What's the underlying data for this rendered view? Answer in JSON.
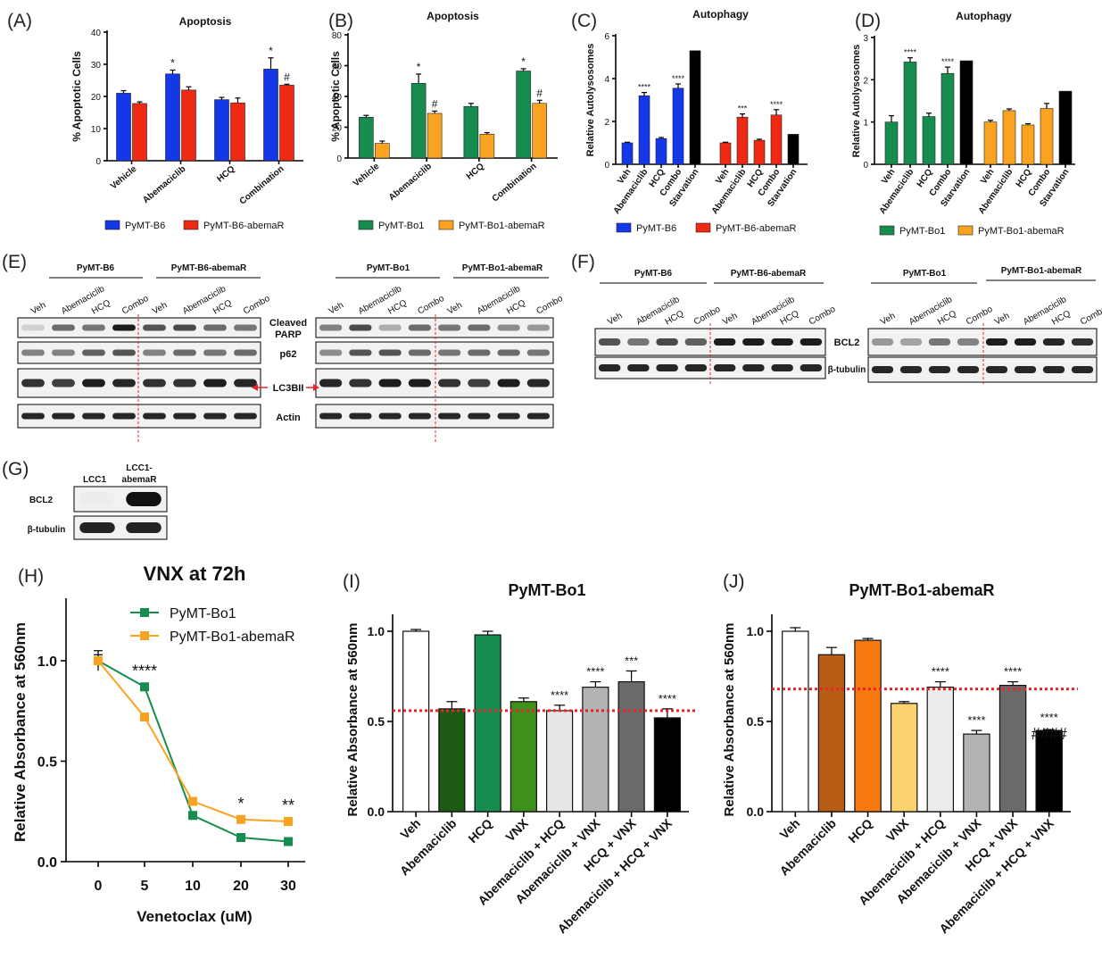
{
  "figure": {
    "panel_labels": [
      "(A)",
      "(B)",
      "(C)",
      "(D)",
      "(E)",
      "(F)",
      "(G)",
      "(H)",
      "(I)",
      "(J)"
    ],
    "colors": {
      "blue": "#1437e8",
      "red": "#ee2a15",
      "green": "#178c4f",
      "orange": "#f9a320",
      "black": "#000000",
      "threshold": "#e5262b"
    }
  },
  "chart_data": [
    {
      "id": "A",
      "type": "bar",
      "title": "Apoptosis",
      "ylabel": "% Apoptotic Cells",
      "xlabel": "",
      "ylim": [
        0,
        40
      ],
      "yticks": [
        "0",
        "10",
        "20",
        "30",
        "40"
      ],
      "categories": [
        "Vehicle",
        "Abemaciclib",
        "HCQ",
        "Combination"
      ],
      "series": [
        {
          "name": "PyMT-B6",
          "color": "#1437e8",
          "values": [
            21,
            27,
            19,
            28.5
          ],
          "errors": [
            0.8,
            1.2,
            0.7,
            3.5
          ]
        },
        {
          "name": "PyMT-B6-abemaR",
          "color": "#ee2a15",
          "values": [
            17.8,
            22,
            18,
            23.5
          ],
          "errors": [
            0.5,
            1.0,
            1.5,
            0.3
          ]
        }
      ],
      "annotations": [
        {
          "series": 0,
          "index": 1,
          "text": "*"
        },
        {
          "series": 0,
          "index": 3,
          "text": "*"
        },
        {
          "series": 1,
          "index": 3,
          "text": "#"
        }
      ]
    },
    {
      "id": "B",
      "type": "bar",
      "title": "Apoptosis",
      "ylabel": "% Apoptotic Cells",
      "xlabel": "",
      "ylim": [
        0,
        80
      ],
      "yticks": [
        "0",
        "20",
        "40",
        "60",
        "80"
      ],
      "categories": [
        "Vehicle",
        "Abemaciclib",
        "HCQ",
        "Combination"
      ],
      "series": [
        {
          "name": "PyMT-Bo1",
          "color": "#178c4f",
          "values": [
            26.5,
            48.5,
            33.5,
            56.5
          ],
          "errors": [
            1.2,
            6.0,
            2.0,
            1.5
          ]
        },
        {
          "name": "PyMT-Bo1-abemaR",
          "color": "#f9a320",
          "values": [
            9.5,
            29,
            15.5,
            35.5
          ],
          "errors": [
            1.5,
            1.5,
            1.0,
            2.0
          ]
        }
      ],
      "annotations": [
        {
          "series": 0,
          "index": 1,
          "text": "*"
        },
        {
          "series": 0,
          "index": 3,
          "text": "*"
        },
        {
          "series": 1,
          "index": 1,
          "text": "#"
        },
        {
          "series": 1,
          "index": 3,
          "text": "#"
        }
      ]
    },
    {
      "id": "C",
      "type": "bar",
      "title": "Autophagy",
      "ylabel": "Relative Autolysosomes",
      "xlabel": "",
      "ylim": [
        0,
        6
      ],
      "yticks": [
        "0",
        "2",
        "4",
        "6"
      ],
      "groups": [
        {
          "name": "PyMT-B6",
          "color": "#1437e8",
          "categories": [
            "Veh",
            "Abemaciclib",
            "HCQ",
            "Combo",
            "Starvation"
          ],
          "values": [
            1.0,
            3.2,
            1.2,
            3.55,
            5.3
          ],
          "errors": [
            0.03,
            0.15,
            0.05,
            0.2,
            0
          ],
          "bar_colors": [
            "#1437e8",
            "#1437e8",
            "#1437e8",
            "#1437e8",
            "#000000"
          ],
          "annotations": [
            "",
            "****",
            "",
            "****",
            ""
          ]
        },
        {
          "name": "PyMT-B6-abemaR",
          "color": "#ee2a15",
          "categories": [
            "Veh",
            "Abemaciclib",
            "HCQ",
            "Combo",
            "Starvation"
          ],
          "values": [
            1.0,
            2.2,
            1.12,
            2.3,
            1.4
          ],
          "errors": [
            0.03,
            0.15,
            0.05,
            0.25,
            0
          ],
          "bar_colors": [
            "#ee2a15",
            "#ee2a15",
            "#ee2a15",
            "#ee2a15",
            "#000000"
          ],
          "annotations": [
            "",
            "***",
            "",
            "****",
            ""
          ]
        }
      ],
      "legend": [
        "PyMT-B6",
        "PyMT-B6-abemaR"
      ]
    },
    {
      "id": "D",
      "type": "bar",
      "title": "Autophagy",
      "ylabel": "Relative Autolysosomes",
      "xlabel": "",
      "ylim": [
        0,
        3
      ],
      "yticks": [
        "0",
        "1",
        "2",
        "3"
      ],
      "groups": [
        {
          "name": "PyMT-Bo1",
          "color": "#178c4f",
          "categories": [
            "Veh",
            "Abemaciclib",
            "HCQ",
            "Combo",
            "Starvation"
          ],
          "values": [
            1.0,
            2.42,
            1.13,
            2.15,
            2.45
          ],
          "errors": [
            0.15,
            0.1,
            0.08,
            0.15,
            0
          ],
          "bar_colors": [
            "#178c4f",
            "#178c4f",
            "#178c4f",
            "#178c4f",
            "#000000"
          ],
          "annotations": [
            "",
            "****",
            "",
            "****",
            ""
          ]
        },
        {
          "name": "PyMT-Bo1-abemaR",
          "color": "#f9a320",
          "categories": [
            "Veh",
            "Abemaciclib",
            "HCQ",
            "Combo",
            "Starvation"
          ],
          "values": [
            1.0,
            1.27,
            0.93,
            1.32,
            1.73
          ],
          "errors": [
            0.04,
            0.04,
            0.03,
            0.12,
            0
          ],
          "bar_colors": [
            "#f9a320",
            "#f9a320",
            "#f9a320",
            "#f9a320",
            "#000000"
          ],
          "annotations": [
            "",
            "",
            "",
            "",
            ""
          ]
        }
      ],
      "legend": [
        "PyMT-Bo1",
        "PyMT-Bo1-abemaR"
      ]
    },
    {
      "id": "H",
      "type": "line",
      "title": "VNX at 72h",
      "xlabel": "Venetoclax (uM)",
      "ylabel": "Relative Absorbance at 560nm",
      "categories": [
        "0",
        "5",
        "10",
        "20",
        "30"
      ],
      "ylim": [
        0,
        1.2
      ],
      "yticks": [
        "0.0",
        "0.5",
        "1.0"
      ],
      "series": [
        {
          "name": "PyMT-Bo1",
          "color": "#178c4f",
          "values": [
            1.0,
            0.87,
            0.23,
            0.12,
            0.1
          ],
          "errors": [
            0.05,
            0.01,
            0.01,
            0.01,
            0.01
          ]
        },
        {
          "name": "PyMT-Bo1-abemaR",
          "color": "#f9a320",
          "values": [
            1.0,
            0.72,
            0.3,
            0.21,
            0.2
          ],
          "errors": [
            0.03,
            0.01,
            0.01,
            0.01,
            0.01
          ]
        }
      ],
      "annotations": [
        "",
        "****",
        "",
        "*",
        "**"
      ]
    },
    {
      "id": "I",
      "type": "bar",
      "title": "PyMT-Bo1",
      "xlabel": "",
      "ylabel": "Relative Absorbance at 560nm",
      "ylim": [
        0,
        1.1
      ],
      "yticks": [
        "0.0",
        "0.5",
        "1.0"
      ],
      "threshold": 0.56,
      "categories": [
        "Veh",
        "Abemaciclib",
        "HCQ",
        "VNX",
        "Abemaciclib + HCQ",
        "Abemaciclib + VNX",
        "HCQ + VNX",
        "Abemaciclib + HCQ + VNX"
      ],
      "values": [
        1.0,
        0.57,
        0.98,
        0.61,
        0.56,
        0.69,
        0.72,
        0.52
      ],
      "errors": [
        0.01,
        0.04,
        0.02,
        0.02,
        0.03,
        0.03,
        0.06,
        0.05
      ],
      "bar_colors": [
        "#ffffff",
        "#1c5a16",
        "#178c4f",
        "#3f8f1c",
        "#e6e6e6",
        "#b3b3b3",
        "#6a6a6a",
        "#000000"
      ],
      "annotations": [
        "",
        "",
        "",
        "",
        "****",
        "****",
        "***",
        "****"
      ]
    },
    {
      "id": "J",
      "type": "bar",
      "title": "PyMT-Bo1-abemaR",
      "xlabel": "",
      "ylabel": "Relative Absorbance at 560nm",
      "ylim": [
        0,
        1.1
      ],
      "yticks": [
        "0.0",
        "0.5",
        "1.0"
      ],
      "threshold": 0.68,
      "categories": [
        "Veh",
        "Abemaciclib",
        "HCQ",
        "VNX",
        "Abemaciclib + HCQ",
        "Abemaciclib + VNX",
        "HCQ + VNX",
        "Abemaciclib + HCQ + VNX"
      ],
      "values": [
        1.0,
        0.87,
        0.95,
        0.6,
        0.69,
        0.43,
        0.7,
        0.45
      ],
      "errors": [
        0.02,
        0.04,
        0.01,
        0.01,
        0.03,
        0.02,
        0.02,
        0.005
      ],
      "bar_colors": [
        "#ffffff",
        "#b85d16",
        "#f7790f",
        "#fcd26e",
        "#ececec",
        "#b3b3b3",
        "#6a6a6a",
        "#000000"
      ],
      "annotations": [
        "",
        "",
        "",
        "",
        "****",
        "****",
        "****",
        "****\n####"
      ]
    }
  ],
  "blots": {
    "E": {
      "left_groups": [
        "PyMT-B6",
        "PyMT-B6-abemaR"
      ],
      "right_groups": [
        "PyMT-Bo1",
        "PyMT-Bo1-abemaR"
      ],
      "lanes": [
        "Veh",
        "Abemaciclib",
        "HCQ",
        "Combo",
        "Veh",
        "Abemaciclib",
        "HCQ",
        "Combo"
      ],
      "rows": [
        "Cleaved PARP",
        "p62",
        "LC3BII",
        "Actin"
      ]
    },
    "F": {
      "left_groups": [
        "PyMT-B6",
        "PyMT-B6-abemaR"
      ],
      "right_groups": [
        "PyMT-Bo1",
        "PyMT-Bo1-abemaR"
      ],
      "lanes": [
        "Veh",
        "Abemaciclib",
        "HCQ",
        "Combo",
        "Veh",
        "Abemaciclib",
        "HCQ",
        "Combo"
      ],
      "rows": [
        "BCL2",
        "β-tubulin"
      ]
    },
    "G": {
      "lanes": [
        "LCC1",
        "LCC1-abemaR"
      ],
      "rows": [
        "BCL2",
        "β-tubulin"
      ]
    }
  }
}
